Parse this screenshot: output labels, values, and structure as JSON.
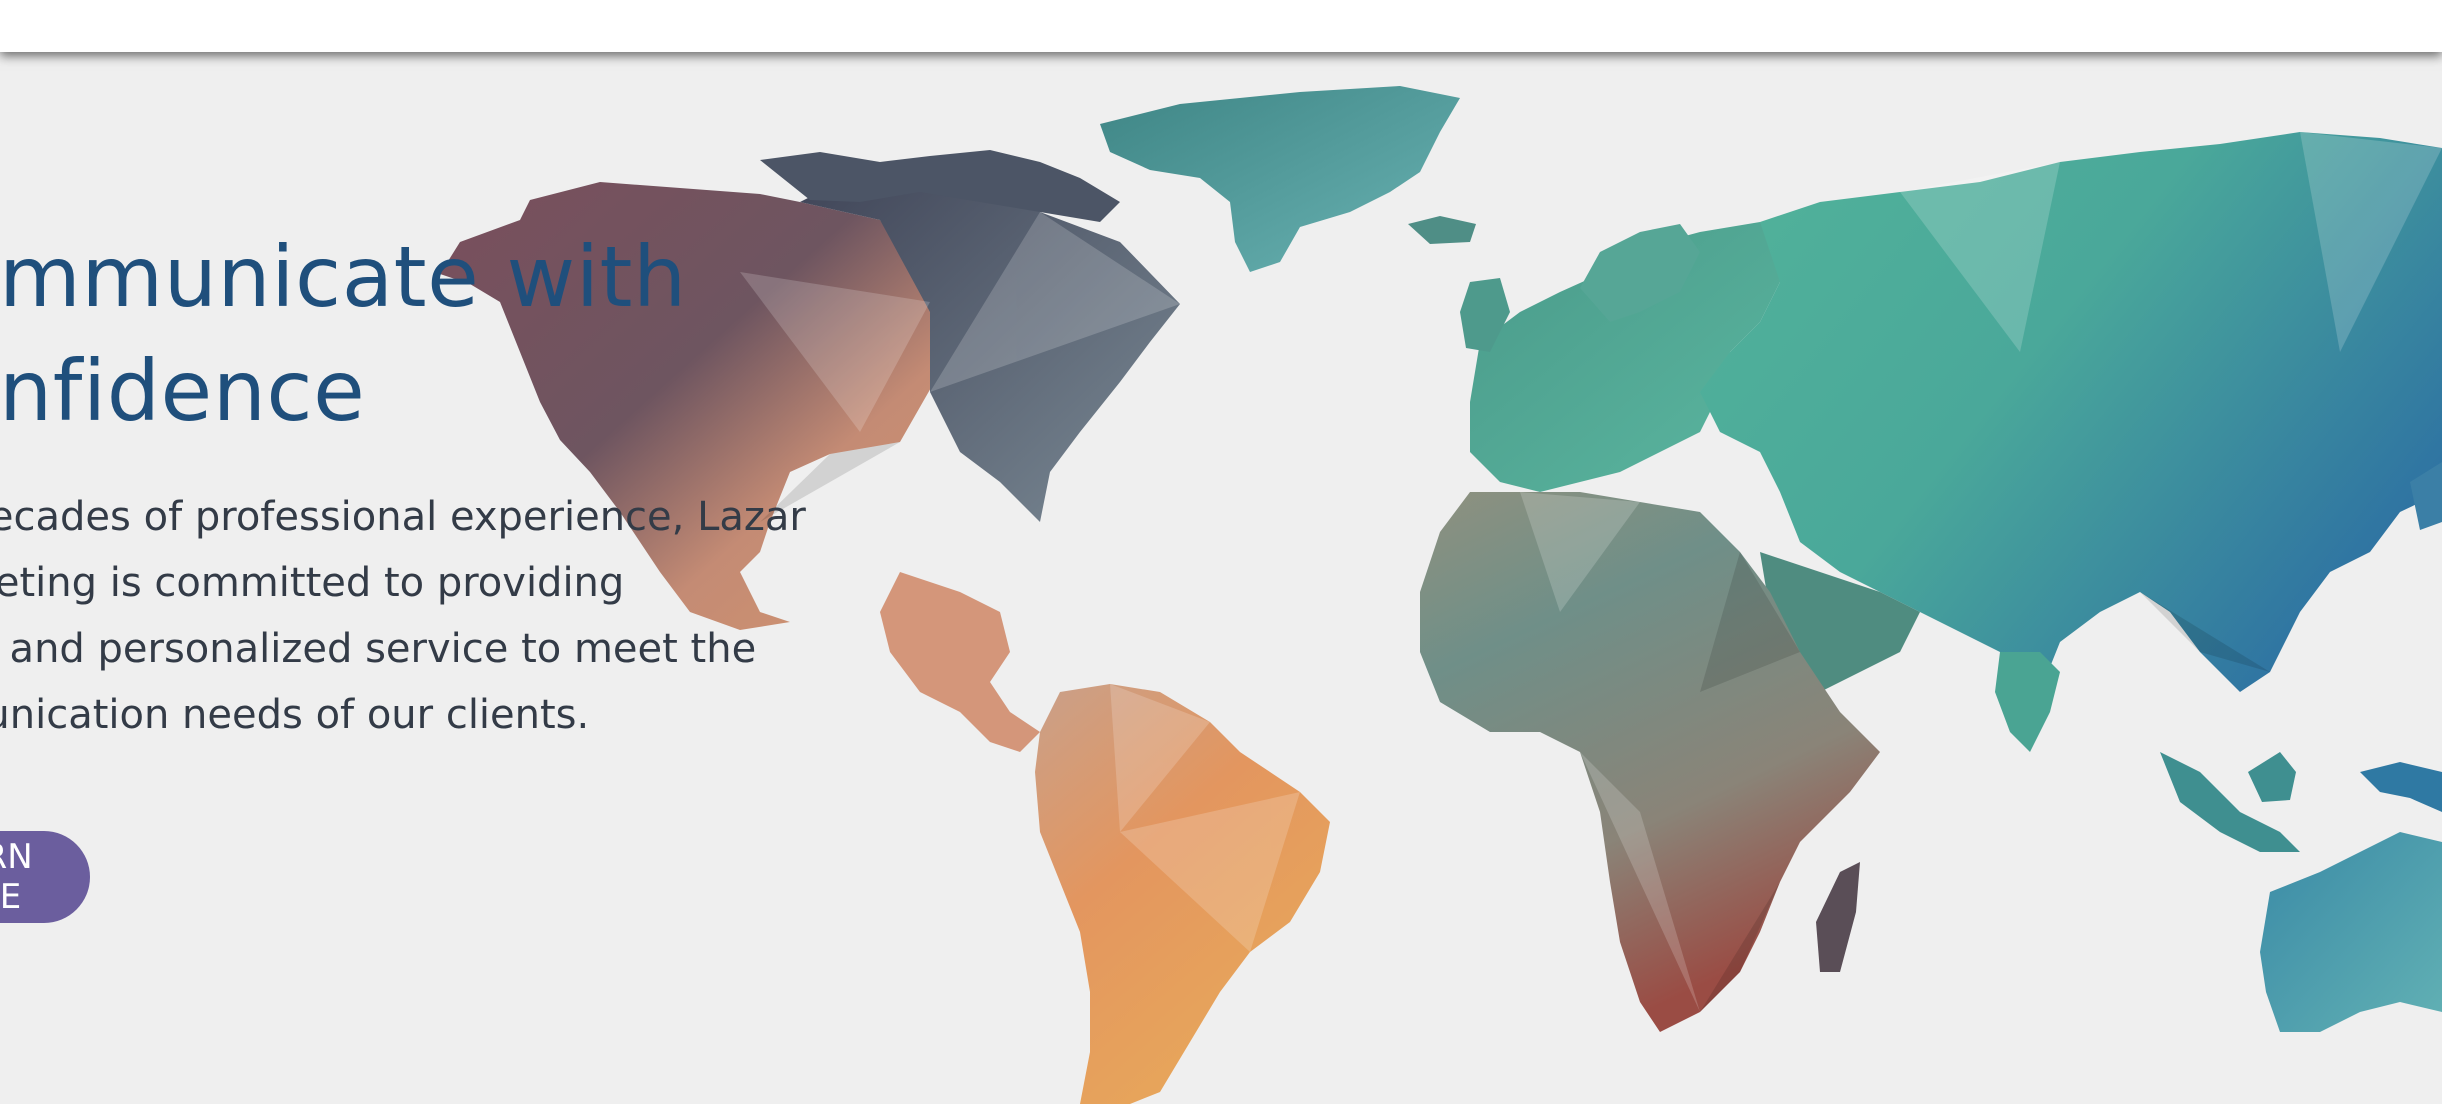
{
  "headline": {
    "line1": "Communicate with",
    "line2": "Confidence"
  },
  "description": {
    "line1": "With decades of professional experience, Lazar",
    "line2": "Interpreting is committed to providing",
    "line3": "quality and personalized service to meet the",
    "line4": "communication needs of our clients."
  },
  "cta": {
    "label": "LEARN MORE",
    "color": "#6b5e9e"
  },
  "colors": {
    "headline": "#1f4f7c",
    "background": "#efefef"
  },
  "map": {
    "icon": "world-map-low-poly"
  }
}
